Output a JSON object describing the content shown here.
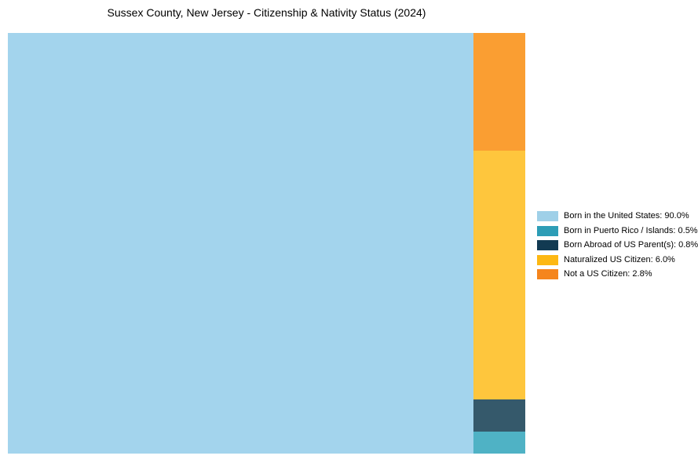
{
  "title": "Sussex County, New Jersey - Citizenship & Nativity Status (2024)",
  "chart_data": {
    "type": "treemap",
    "title": "Sussex County, New Jersey - Citizenship & Nativity Status (2024)",
    "categories": [
      "Born in the United States",
      "Born in Puerto Rico / Islands",
      "Born Abroad of US Parent(s)",
      "Naturalized US Citizen",
      "Not a US Citizen"
    ],
    "values": [
      90.0,
      0.5,
      0.8,
      6.0,
      2.8
    ],
    "unit": "%",
    "legend_position": "right of chart, vertically centered",
    "layout": "Single large block (Born in the United States, 90%) fills left ~90% of width at full height; remaining right column stacked top-to-bottom: Not a US Citizen, Naturalized US Citizen, Born Abroad of US Parent(s), Born in Puerto Rico / Islands",
    "grid": false,
    "axes": false
  },
  "colors": {
    "background": "#ffffff",
    "text": "#000000",
    "chart_blocks": {
      "born_us": "#a3d4ed",
      "born_pr": "#4fb2c5",
      "born_abroad": "#35596b",
      "naturalized": "#fec63d",
      "not_citizen": "#fa9e32"
    },
    "legend_swatches": {
      "born_us": "#9fd0e8",
      "born_pr": "#2d9db6",
      "born_abroad": "#123a52",
      "naturalized": "#fdb813",
      "not_citizen": "#f5851d"
    }
  },
  "legend": {
    "items": [
      {
        "label": "Born in the United States",
        "value": 90.0,
        "display": "Born in the United States: 90.0%"
      },
      {
        "label": "Born in Puerto Rico / Islands",
        "value": 0.5,
        "display": "Born in Puerto Rico / Islands: 0.5%"
      },
      {
        "label": "Born Abroad of US Parent(s)",
        "value": 0.8,
        "display": "Born Abroad of US Parent(s): 0.8%"
      },
      {
        "label": "Naturalized US Citizen",
        "value": 6.0,
        "display": "Naturalized US Citizen: 6.0%"
      },
      {
        "label": "Not a US Citizen",
        "value": 2.8,
        "display": "Not a US Citizen: 2.8%"
      }
    ]
  }
}
